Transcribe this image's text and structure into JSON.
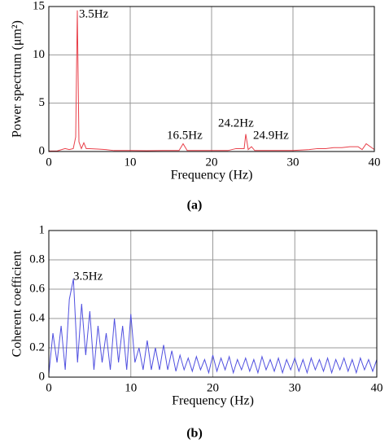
{
  "chart_data": [
    {
      "type": "line",
      "caption": "(a)",
      "xlabel": "Frequency (Hz)",
      "ylabel": "Power spectrum (μm²)",
      "annotations": [
        "3.5Hz",
        "16.5Hz",
        "24.2Hz",
        "24.9Hz"
      ],
      "color": "#e8404a",
      "grid": true,
      "xlim": [
        0,
        40
      ],
      "xticks": [
        0,
        10,
        20,
        30,
        40
      ],
      "ylim": [
        0,
        15
      ],
      "yticks": [
        0,
        5,
        10,
        15
      ],
      "x": [
        0,
        1,
        2,
        2.5,
        3,
        3.3,
        3.5,
        3.7,
        4,
        4.3,
        4.6,
        5,
        6,
        7,
        8,
        10,
        12,
        14,
        16,
        16.5,
        17,
        18,
        20,
        22,
        23,
        24,
        24.2,
        24.5,
        24.9,
        25.3,
        26,
        28,
        30,
        32,
        33,
        34,
        35,
        36,
        37,
        38,
        38.5,
        39,
        40
      ],
      "values": [
        0.05,
        0.05,
        0.3,
        0.2,
        0.3,
        1.5,
        14.6,
        1.0,
        0.3,
        0.9,
        0.3,
        0.3,
        0.25,
        0.2,
        0.1,
        0.1,
        0.08,
        0.1,
        0.1,
        0.8,
        0.1,
        0.1,
        0.1,
        0.1,
        0.3,
        0.3,
        1.8,
        0.2,
        0.5,
        0.1,
        0.1,
        0.1,
        0.1,
        0.2,
        0.3,
        0.3,
        0.4,
        0.4,
        0.5,
        0.5,
        0.2,
        0.8,
        0.2
      ]
    },
    {
      "type": "line",
      "caption": "(b)",
      "xlabel": "Frequency (Hz)",
      "ylabel": "Coherent coefficient",
      "annotations": [
        "3.5Hz"
      ],
      "color": "#5050e0",
      "grid": true,
      "xlim": [
        0,
        40
      ],
      "xticks": [
        0,
        10,
        20,
        30,
        40
      ],
      "ylim": [
        0,
        1
      ],
      "yticks": [
        0,
        0.2,
        0.4,
        0.6,
        0.8,
        1
      ],
      "x": [
        0,
        0.5,
        1,
        1.5,
        2,
        2.5,
        3,
        3.5,
        4,
        4.5,
        5,
        5.5,
        6,
        6.5,
        7,
        7.5,
        8,
        8.5,
        9,
        9.5,
        10,
        10.5,
        11,
        11.5,
        12,
        12.5,
        13,
        13.5,
        14,
        14.5,
        15,
        15.5,
        16,
        16.5,
        17,
        17.5,
        18,
        18.5,
        19,
        19.5,
        20,
        20.5,
        21,
        21.5,
        22,
        22.5,
        23,
        23.5,
        24,
        24.5,
        25,
        25.5,
        26,
        26.5,
        27,
        27.5,
        28,
        28.5,
        29,
        29.5,
        30,
        30.5,
        31,
        31.5,
        32,
        32.5,
        33,
        33.5,
        34,
        34.5,
        35,
        35.5,
        36,
        36.5,
        37,
        37.5,
        38,
        38.5,
        39,
        39.5,
        40
      ],
      "values": [
        0.02,
        0.3,
        0.1,
        0.35,
        0.05,
        0.53,
        0.67,
        0.1,
        0.5,
        0.15,
        0.45,
        0.05,
        0.35,
        0.1,
        0.3,
        0.05,
        0.4,
        0.1,
        0.35,
        0.05,
        0.43,
        0.1,
        0.2,
        0.05,
        0.25,
        0.05,
        0.2,
        0.05,
        0.22,
        0.05,
        0.18,
        0.04,
        0.15,
        0.05,
        0.13,
        0.04,
        0.14,
        0.05,
        0.12,
        0.03,
        0.15,
        0.04,
        0.13,
        0.05,
        0.14,
        0.03,
        0.12,
        0.05,
        0.13,
        0.04,
        0.12,
        0.03,
        0.14,
        0.05,
        0.12,
        0.04,
        0.13,
        0.03,
        0.12,
        0.05,
        0.13,
        0.04,
        0.12,
        0.03,
        0.13,
        0.05,
        0.12,
        0.04,
        0.13,
        0.03,
        0.12,
        0.05,
        0.13,
        0.04,
        0.12,
        0.03,
        0.13,
        0.05,
        0.12,
        0.04,
        0.12
      ]
    }
  ]
}
